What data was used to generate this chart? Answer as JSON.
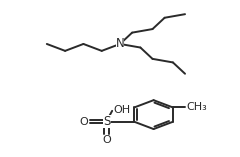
{
  "bg_color": "#ffffff",
  "line_color": "#2a2a2a",
  "line_width": 1.4,
  "font_size": 8.5,
  "figsize": [
    2.4,
    1.57
  ],
  "dpi": 100,
  "N_label": "N",
  "S_label": "S",
  "OH_label": "OH",
  "O_label": "O",
  "CH3_label": "CH₃",
  "seg": 0.088
}
